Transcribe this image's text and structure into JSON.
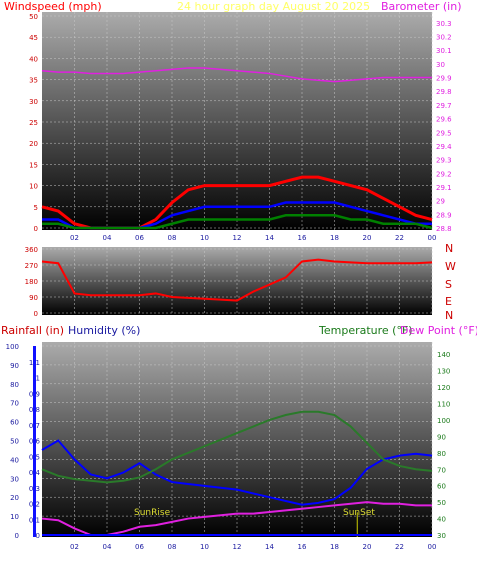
{
  "header": {
    "left": "Windspeed (mph)",
    "center": "24 hour graph day   August 20 2025",
    "right": "Barometer (in)"
  },
  "compass": [
    "N",
    "W",
    "S",
    "E",
    "N"
  ],
  "lower_header": {
    "rainfall": "Rainfall (in)",
    "humidity": "Humidity (%)",
    "temperature": "Temperature (°F)",
    "dewpoint": "Dew Point (°F)"
  },
  "annotations": {
    "sunrise": "SunRise",
    "sunset": "SunSet"
  },
  "colors": {
    "wind_speed": "#ff0000",
    "wind_avg": "#0000ff",
    "wind_low": "#008000",
    "barometer": "#e020e0",
    "direction": "#ff0000",
    "humidity": "#0000ff",
    "temperature": "#2a7a2a",
    "dewpoint": "#e020e0",
    "rainfall": "#0000ff",
    "sunline": "#cccc00"
  },
  "chart_data": [
    {
      "type": "line",
      "title": "24 hour graph day   August 20 2025",
      "ylabel": "Windspeed (mph)",
      "y2label": "Barometer (in)",
      "x_ticks": [
        "02",
        "04",
        "06",
        "08",
        "10",
        "12",
        "14",
        "16",
        "18",
        "20",
        "22",
        "00"
      ],
      "y_ticks": [
        "0",
        "5",
        "10",
        "15",
        "20",
        "25",
        "30",
        "35",
        "40",
        "45",
        "50"
      ],
      "y2_ticks": [
        "28.8",
        "28.9",
        "29",
        "29.1",
        "29.2",
        "29.3",
        "29.4",
        "29.5",
        "29.6",
        "29.7",
        "29.8",
        "29.9",
        "30",
        "30.1",
        "30.2",
        "30.3"
      ],
      "ylim": [
        0,
        50
      ],
      "y2lim": [
        28.8,
        30.35
      ],
      "x": [
        0,
        1,
        2,
        3,
        4,
        5,
        6,
        7,
        8,
        9,
        10,
        11,
        12,
        13,
        14,
        15,
        16,
        17,
        18,
        19,
        20,
        21,
        22,
        23,
        24
      ],
      "series": [
        {
          "values": [
            5,
            4,
            1,
            0,
            0,
            0,
            0,
            2,
            6,
            9,
            10,
            10,
            10,
            10,
            10,
            11,
            12,
            12,
            11,
            10,
            9,
            7,
            5,
            3,
            2
          ]
        },
        {
          "values": [
            2,
            2,
            0,
            0,
            0,
            0,
            0,
            1,
            3,
            4,
            5,
            5,
            5,
            5,
            5,
            6,
            6,
            6,
            6,
            5,
            4,
            3,
            2,
            1,
            1
          ]
        },
        {
          "values": [
            1,
            1,
            0,
            0,
            0,
            0,
            0,
            0,
            1,
            2,
            2,
            2,
            2,
            2,
            2,
            3,
            3,
            3,
            3,
            2,
            2,
            1,
            1,
            1,
            0
          ]
        },
        {
          "values": [
            29.95,
            29.94,
            29.94,
            29.93,
            29.93,
            29.93,
            29.94,
            29.95,
            29.96,
            29.97,
            29.97,
            29.96,
            29.95,
            29.94,
            29.93,
            29.91,
            29.89,
            29.88,
            29.87,
            29.88,
            29.89,
            29.9,
            29.9,
            29.9,
            29.9
          ]
        }
      ]
    },
    {
      "type": "line",
      "y_ticks": [
        "360",
        "270",
        "180",
        "90",
        "0"
      ],
      "ylim": [
        0,
        360
      ],
      "x": [
        0,
        1,
        2,
        3,
        4,
        5,
        6,
        7,
        8,
        9,
        10,
        11,
        12,
        13,
        14,
        15,
        16,
        17,
        18,
        19,
        20,
        21,
        22,
        23,
        24
      ],
      "series": [
        {
          "values": [
            290,
            280,
            110,
            100,
            100,
            100,
            100,
            110,
            90,
            85,
            80,
            75,
            70,
            120,
            160,
            200,
            290,
            300,
            290,
            285,
            280,
            280,
            280,
            280,
            285
          ]
        }
      ]
    },
    {
      "type": "line",
      "x_ticks": [
        "02",
        "04",
        "06",
        "08",
        "10",
        "12",
        "14",
        "16",
        "18",
        "20",
        "22",
        "00"
      ],
      "rain_ticks": [
        "0",
        "0.1",
        "0.2",
        "0.3",
        "0.4",
        "0.5",
        "0.6",
        "0.7",
        "0.8",
        "0.9",
        "1",
        "1.1"
      ],
      "humidity_ticks": [
        "0",
        "10",
        "20",
        "30",
        "40",
        "50",
        "60",
        "70",
        "80",
        "90",
        "100"
      ],
      "temp_ticks": [
        "30",
        "40",
        "50",
        "60",
        "70",
        "80",
        "90",
        "100",
        "110",
        "120",
        "130",
        "140"
      ],
      "ylim": [
        0,
        100
      ],
      "y2lim": [
        30,
        145
      ],
      "x": [
        0,
        1,
        2,
        3,
        4,
        5,
        6,
        7,
        8,
        9,
        10,
        11,
        12,
        13,
        14,
        15,
        16,
        17,
        18,
        19,
        20,
        21,
        22,
        23,
        24
      ],
      "series": [
        {
          "values": [
            45,
            50,
            40,
            32,
            30,
            33,
            38,
            32,
            28,
            27,
            26,
            25,
            24,
            22,
            20,
            18,
            16,
            17,
            19,
            25,
            35,
            40,
            42,
            43,
            42
          ]
        },
        {
          "values": [
            70,
            66,
            64,
            63,
            62,
            63,
            65,
            70,
            76,
            80,
            84,
            88,
            92,
            96,
            100,
            103,
            105,
            105,
            103,
            96,
            86,
            76,
            72,
            70,
            69
          ]
        },
        {
          "values": [
            40,
            39,
            34,
            30,
            30,
            32,
            35,
            36,
            38,
            40,
            41,
            42,
            43,
            43,
            44,
            45,
            46,
            47,
            48,
            49,
            50,
            49,
            49,
            48,
            48
          ]
        },
        {
          "values": [
            0,
            0,
            0,
            0,
            0,
            0,
            0,
            0,
            0,
            0,
            0,
            0,
            0,
            0,
            0,
            0,
            0,
            0,
            0,
            0,
            0,
            0,
            0,
            0,
            0
          ]
        }
      ]
    }
  ]
}
